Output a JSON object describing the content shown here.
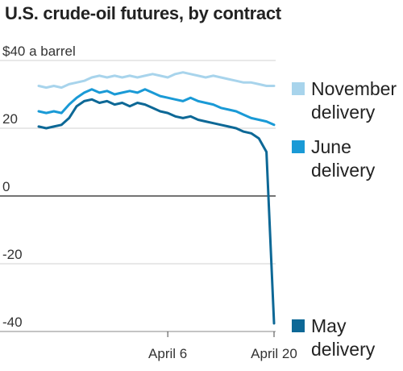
{
  "chart_data": {
    "type": "line",
    "title": "U.S. crude-oil futures, by contract",
    "ylabel": "$40 a barrel",
    "ylim": [
      -40,
      40
    ],
    "y_ticks": [
      {
        "value": 40,
        "label": "$40 a barrel"
      },
      {
        "value": 20,
        "label": "20"
      },
      {
        "value": 0,
        "label": "0"
      },
      {
        "value": -20,
        "label": "-20"
      },
      {
        "value": -40,
        "label": "-40"
      }
    ],
    "x_ticks": [
      "April 6",
      "April 20"
    ],
    "x": [
      "2020-03-20",
      "2020-03-21",
      "2020-03-22",
      "2020-03-23",
      "2020-03-24",
      "2020-03-25",
      "2020-03-26",
      "2020-03-27",
      "2020-03-28",
      "2020-03-29",
      "2020-03-30",
      "2020-03-31",
      "2020-04-01",
      "2020-04-02",
      "2020-04-03",
      "2020-04-04",
      "2020-04-05",
      "2020-04-06",
      "2020-04-07",
      "2020-04-08",
      "2020-04-09",
      "2020-04-10",
      "2020-04-11",
      "2020-04-12",
      "2020-04-13",
      "2020-04-14",
      "2020-04-15",
      "2020-04-16",
      "2020-04-17",
      "2020-04-18",
      "2020-04-19",
      "2020-04-20"
    ],
    "series": [
      {
        "name": "November delivery",
        "color": "#a8d4ec",
        "values": [
          32.5,
          32.0,
          32.5,
          32.0,
          33.0,
          33.5,
          34.0,
          35.0,
          35.5,
          35.0,
          35.5,
          35.0,
          35.5,
          35.0,
          35.5,
          36.0,
          35.5,
          35.0,
          36.0,
          36.5,
          36.0,
          35.5,
          35.0,
          35.5,
          35.0,
          34.5,
          34.0,
          33.5,
          33.5,
          33.0,
          32.5,
          32.5
        ]
      },
      {
        "name": "June delivery",
        "color": "#1a9ad6",
        "values": [
          25.0,
          24.5,
          25.0,
          24.5,
          27.0,
          29.0,
          30.5,
          31.5,
          30.5,
          31.0,
          30.0,
          30.5,
          31.0,
          30.5,
          31.5,
          30.5,
          29.5,
          29.0,
          28.5,
          28.0,
          29.0,
          28.0,
          27.5,
          27.0,
          26.0,
          25.5,
          25.0,
          24.0,
          23.0,
          22.5,
          22.0,
          21.0
        ]
      },
      {
        "name": "May delivery",
        "color": "#0d6896",
        "values": [
          20.5,
          20.0,
          20.5,
          21.0,
          23.0,
          26.5,
          28.0,
          28.5,
          27.5,
          28.0,
          27.0,
          27.5,
          26.5,
          27.5,
          27.0,
          26.0,
          25.0,
          24.5,
          23.5,
          23.0,
          23.5,
          22.5,
          22.0,
          21.5,
          21.0,
          20.5,
          20.0,
          19.0,
          18.5,
          17.0,
          13.0,
          -37.6
        ]
      }
    ],
    "grid": true,
    "legend": "right"
  }
}
